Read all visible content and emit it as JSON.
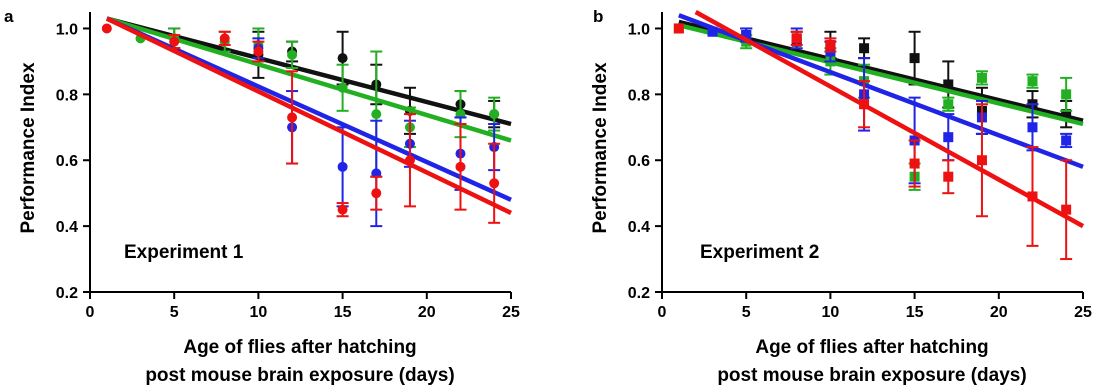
{
  "colors": {
    "black": "#111111",
    "green": "#22b022",
    "blue": "#1f24e6",
    "red": "#ee1111"
  },
  "chart_data": [
    {
      "type": "scatter",
      "panel_letter": "a",
      "annotation": "Experiment 1",
      "xlabel_line1": "Age of flies after hatching",
      "xlabel_line2": "post mouse brain exposure (days)",
      "ylabel": "Performance Index",
      "xlim": [
        0,
        25
      ],
      "ylim": [
        0.2,
        1.05
      ],
      "x_ticks": [
        0,
        5,
        10,
        15,
        20,
        25
      ],
      "y_ticks": [
        0.2,
        0.4,
        0.6,
        0.8,
        1.0
      ],
      "x_tick_labels": [
        "0",
        "5",
        "10",
        "15",
        "20",
        "25"
      ],
      "y_tick_labels": [
        "0.2",
        "0.4",
        "0.6",
        "0.8",
        "1.0"
      ],
      "marker": "circle",
      "grid": false,
      "series": [
        {
          "color_key": "black",
          "points": [
            [
              5,
              0.97,
              0.03
            ],
            [
              10,
              0.92,
              0.07
            ],
            [
              12,
              0.93,
              0.03
            ],
            [
              15,
              0.91,
              0.08
            ],
            [
              17,
              0.83,
              0.06
            ],
            [
              19,
              0.75,
              0.07
            ],
            [
              22,
              0.77,
              0.04
            ],
            [
              24,
              0.74,
              0.04
            ]
          ],
          "fit": [
            [
              1,
              1.03
            ],
            [
              25,
              0.71
            ]
          ]
        },
        {
          "color_key": "green",
          "points": [
            [
              3,
              0.97,
              0.0
            ],
            [
              5,
              0.97,
              0.03
            ],
            [
              8,
              0.96,
              0.03
            ],
            [
              10,
              0.95,
              0.05
            ],
            [
              12,
              0.92,
              0.04
            ],
            [
              15,
              0.82,
              0.07
            ],
            [
              17,
              0.74,
              0.19
            ],
            [
              19,
              0.7,
              0.06
            ],
            [
              22,
              0.74,
              0.07
            ],
            [
              24,
              0.74,
              0.05
            ]
          ],
          "fit": [
            [
              1,
              1.03
            ],
            [
              25,
              0.66
            ]
          ]
        },
        {
          "color_key": "blue",
          "points": [
            [
              10,
              0.94,
              0.03
            ],
            [
              12,
              0.7,
              0.11
            ],
            [
              15,
              0.58,
              0.12
            ],
            [
              17,
              0.56,
              0.16
            ],
            [
              19,
              0.65,
              0.07
            ],
            [
              22,
              0.62,
              0.11
            ],
            [
              24,
              0.64,
              0.07
            ]
          ],
          "fit": [
            [
              1,
              1.03
            ],
            [
              25,
              0.48
            ]
          ]
        },
        {
          "color_key": "red",
          "points": [
            [
              1,
              1.0,
              0.0
            ],
            [
              5,
              0.96,
              0.02
            ],
            [
              8,
              0.97,
              0.02
            ],
            [
              10,
              0.93,
              0.03
            ],
            [
              12,
              0.73,
              0.14
            ],
            [
              15,
              0.45,
              0.02
            ],
            [
              17,
              0.5,
              0.05
            ],
            [
              19,
              0.6,
              0.14
            ],
            [
              22,
              0.58,
              0.13
            ],
            [
              24,
              0.53,
              0.12
            ]
          ],
          "fit": [
            [
              1,
              1.03
            ],
            [
              25,
              0.44
            ]
          ]
        }
      ]
    },
    {
      "type": "scatter",
      "panel_letter": "b",
      "annotation": "Experiment 2",
      "xlabel_line1": "Age of flies after hatching",
      "xlabel_line2": "post mouse brain exposure (days)",
      "ylabel": "Performance Index",
      "xlim": [
        0,
        25
      ],
      "ylim": [
        0.2,
        1.05
      ],
      "x_ticks": [
        0,
        5,
        10,
        15,
        20,
        25
      ],
      "y_ticks": [
        0.2,
        0.4,
        0.6,
        0.8,
        1.0
      ],
      "x_tick_labels": [
        "0",
        "5",
        "10",
        "15",
        "20",
        "25"
      ],
      "y_tick_labels": [
        "0.2",
        "0.4",
        "0.6",
        "0.8",
        "1.0"
      ],
      "marker": "square",
      "grid": false,
      "series": [
        {
          "color_key": "black",
          "points": [
            [
              5,
              0.98,
              0.02
            ],
            [
              8,
              0.96,
              0.03
            ],
            [
              10,
              0.95,
              0.04
            ],
            [
              12,
              0.94,
              0.03
            ],
            [
              15,
              0.91,
              0.08
            ],
            [
              17,
              0.83,
              0.07
            ],
            [
              19,
              0.75,
              0.07
            ],
            [
              22,
              0.77,
              0.04
            ],
            [
              24,
              0.74,
              0.04
            ]
          ],
          "fit": [
            [
              1,
              1.02
            ],
            [
              25,
              0.72
            ]
          ]
        },
        {
          "color_key": "green",
          "points": [
            [
              1,
              1.0,
              0.0
            ],
            [
              5,
              0.96,
              0.02
            ],
            [
              10,
              0.9,
              0.04
            ],
            [
              12,
              0.84,
              0.05
            ],
            [
              15,
              0.55,
              0.04
            ],
            [
              17,
              0.77,
              0.02
            ],
            [
              19,
              0.85,
              0.02
            ],
            [
              22,
              0.84,
              0.02
            ],
            [
              24,
              0.8,
              0.05
            ]
          ],
          "fit": [
            [
              1,
              1.01
            ],
            [
              25,
              0.71
            ]
          ]
        },
        {
          "color_key": "blue",
          "points": [
            [
              3,
              0.99,
              0.0
            ],
            [
              5,
              0.98,
              0.02
            ],
            [
              8,
              0.97,
              0.03
            ],
            [
              10,
              0.93,
              0.03
            ],
            [
              12,
              0.8,
              0.11
            ],
            [
              15,
              0.66,
              0.13
            ],
            [
              17,
              0.67,
              0.07
            ],
            [
              19,
              0.73,
              0.05
            ],
            [
              22,
              0.7,
              0.07
            ],
            [
              24,
              0.66,
              0.02
            ]
          ],
          "fit": [
            [
              1,
              1.04
            ],
            [
              25,
              0.58
            ]
          ]
        },
        {
          "color_key": "red",
          "points": [
            [
              1,
              1.0,
              0.0
            ],
            [
              8,
              0.97,
              0.02
            ],
            [
              10,
              0.95,
              0.02
            ],
            [
              12,
              0.77,
              0.07
            ],
            [
              15,
              0.59,
              0.07
            ],
            [
              17,
              0.55,
              0.05
            ],
            [
              19,
              0.6,
              0.17
            ],
            [
              22,
              0.49,
              0.15
            ],
            [
              24,
              0.45,
              0.15
            ]
          ],
          "fit": [
            [
              2,
              1.05
            ],
            [
              25,
              0.4
            ]
          ]
        }
      ]
    }
  ]
}
